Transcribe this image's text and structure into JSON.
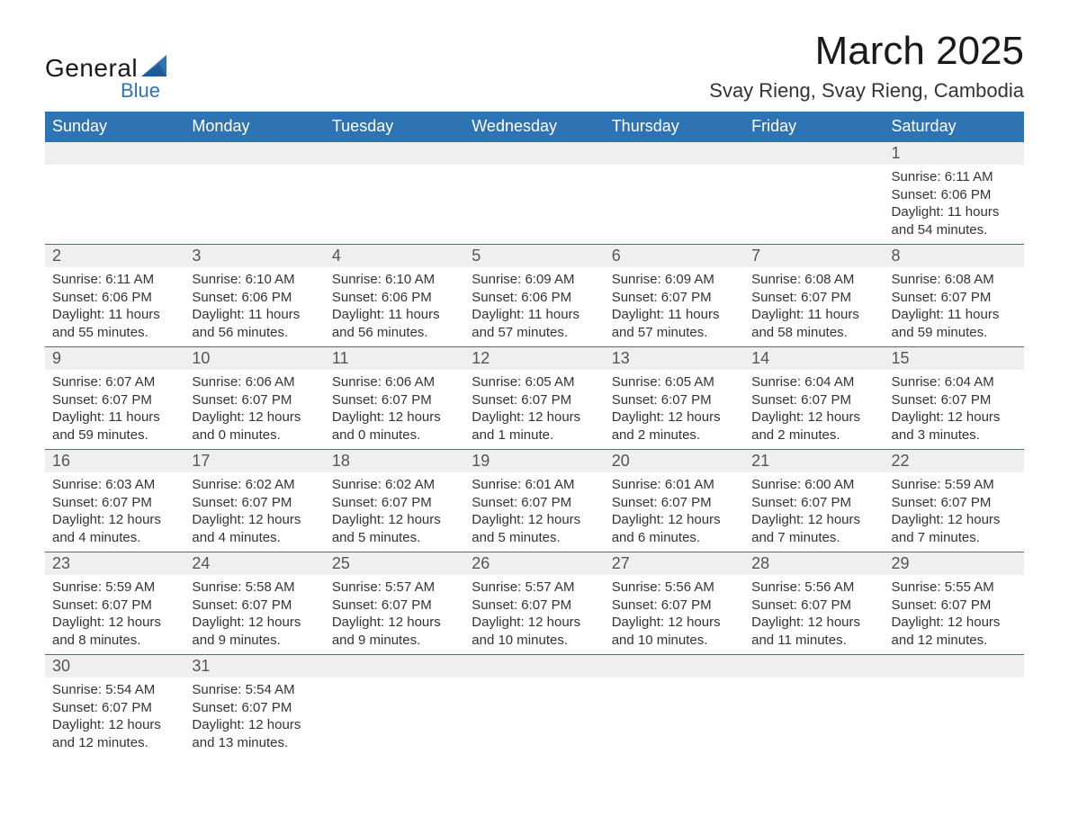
{
  "brand": {
    "general": "General",
    "blue": "Blue"
  },
  "title": "March 2025",
  "location": "Svay Rieng, Svay Rieng, Cambodia",
  "colors": {
    "header_bg": "#2e74b5",
    "header_text": "#ffffff",
    "daynum_bg": "#efefef",
    "border": "#2e74b5",
    "text": "#333333",
    "page_bg": "#ffffff",
    "logo_blue": "#2e74b5"
  },
  "typography": {
    "title_fontsize": 44,
    "location_fontsize": 22,
    "header_fontsize": 18,
    "daynum_fontsize": 18,
    "body_fontsize": 15
  },
  "day_headers": [
    "Sunday",
    "Monday",
    "Tuesday",
    "Wednesday",
    "Thursday",
    "Friday",
    "Saturday"
  ],
  "weeks": [
    [
      null,
      null,
      null,
      null,
      null,
      null,
      {
        "n": "1",
        "sunrise": "Sunrise: 6:11 AM",
        "sunset": "Sunset: 6:06 PM",
        "daylight": "Daylight: 11 hours and 54 minutes."
      }
    ],
    [
      {
        "n": "2",
        "sunrise": "Sunrise: 6:11 AM",
        "sunset": "Sunset: 6:06 PM",
        "daylight": "Daylight: 11 hours and 55 minutes."
      },
      {
        "n": "3",
        "sunrise": "Sunrise: 6:10 AM",
        "sunset": "Sunset: 6:06 PM",
        "daylight": "Daylight: 11 hours and 56 minutes."
      },
      {
        "n": "4",
        "sunrise": "Sunrise: 6:10 AM",
        "sunset": "Sunset: 6:06 PM",
        "daylight": "Daylight: 11 hours and 56 minutes."
      },
      {
        "n": "5",
        "sunrise": "Sunrise: 6:09 AM",
        "sunset": "Sunset: 6:06 PM",
        "daylight": "Daylight: 11 hours and 57 minutes."
      },
      {
        "n": "6",
        "sunrise": "Sunrise: 6:09 AM",
        "sunset": "Sunset: 6:07 PM",
        "daylight": "Daylight: 11 hours and 57 minutes."
      },
      {
        "n": "7",
        "sunrise": "Sunrise: 6:08 AM",
        "sunset": "Sunset: 6:07 PM",
        "daylight": "Daylight: 11 hours and 58 minutes."
      },
      {
        "n": "8",
        "sunrise": "Sunrise: 6:08 AM",
        "sunset": "Sunset: 6:07 PM",
        "daylight": "Daylight: 11 hours and 59 minutes."
      }
    ],
    [
      {
        "n": "9",
        "sunrise": "Sunrise: 6:07 AM",
        "sunset": "Sunset: 6:07 PM",
        "daylight": "Daylight: 11 hours and 59 minutes."
      },
      {
        "n": "10",
        "sunrise": "Sunrise: 6:06 AM",
        "sunset": "Sunset: 6:07 PM",
        "daylight": "Daylight: 12 hours and 0 minutes."
      },
      {
        "n": "11",
        "sunrise": "Sunrise: 6:06 AM",
        "sunset": "Sunset: 6:07 PM",
        "daylight": "Daylight: 12 hours and 0 minutes."
      },
      {
        "n": "12",
        "sunrise": "Sunrise: 6:05 AM",
        "sunset": "Sunset: 6:07 PM",
        "daylight": "Daylight: 12 hours and 1 minute."
      },
      {
        "n": "13",
        "sunrise": "Sunrise: 6:05 AM",
        "sunset": "Sunset: 6:07 PM",
        "daylight": "Daylight: 12 hours and 2 minutes."
      },
      {
        "n": "14",
        "sunrise": "Sunrise: 6:04 AM",
        "sunset": "Sunset: 6:07 PM",
        "daylight": "Daylight: 12 hours and 2 minutes."
      },
      {
        "n": "15",
        "sunrise": "Sunrise: 6:04 AM",
        "sunset": "Sunset: 6:07 PM",
        "daylight": "Daylight: 12 hours and 3 minutes."
      }
    ],
    [
      {
        "n": "16",
        "sunrise": "Sunrise: 6:03 AM",
        "sunset": "Sunset: 6:07 PM",
        "daylight": "Daylight: 12 hours and 4 minutes."
      },
      {
        "n": "17",
        "sunrise": "Sunrise: 6:02 AM",
        "sunset": "Sunset: 6:07 PM",
        "daylight": "Daylight: 12 hours and 4 minutes."
      },
      {
        "n": "18",
        "sunrise": "Sunrise: 6:02 AM",
        "sunset": "Sunset: 6:07 PM",
        "daylight": "Daylight: 12 hours and 5 minutes."
      },
      {
        "n": "19",
        "sunrise": "Sunrise: 6:01 AM",
        "sunset": "Sunset: 6:07 PM",
        "daylight": "Daylight: 12 hours and 5 minutes."
      },
      {
        "n": "20",
        "sunrise": "Sunrise: 6:01 AM",
        "sunset": "Sunset: 6:07 PM",
        "daylight": "Daylight: 12 hours and 6 minutes."
      },
      {
        "n": "21",
        "sunrise": "Sunrise: 6:00 AM",
        "sunset": "Sunset: 6:07 PM",
        "daylight": "Daylight: 12 hours and 7 minutes."
      },
      {
        "n": "22",
        "sunrise": "Sunrise: 5:59 AM",
        "sunset": "Sunset: 6:07 PM",
        "daylight": "Daylight: 12 hours and 7 minutes."
      }
    ],
    [
      {
        "n": "23",
        "sunrise": "Sunrise: 5:59 AM",
        "sunset": "Sunset: 6:07 PM",
        "daylight": "Daylight: 12 hours and 8 minutes."
      },
      {
        "n": "24",
        "sunrise": "Sunrise: 5:58 AM",
        "sunset": "Sunset: 6:07 PM",
        "daylight": "Daylight: 12 hours and 9 minutes."
      },
      {
        "n": "25",
        "sunrise": "Sunrise: 5:57 AM",
        "sunset": "Sunset: 6:07 PM",
        "daylight": "Daylight: 12 hours and 9 minutes."
      },
      {
        "n": "26",
        "sunrise": "Sunrise: 5:57 AM",
        "sunset": "Sunset: 6:07 PM",
        "daylight": "Daylight: 12 hours and 10 minutes."
      },
      {
        "n": "27",
        "sunrise": "Sunrise: 5:56 AM",
        "sunset": "Sunset: 6:07 PM",
        "daylight": "Daylight: 12 hours and 10 minutes."
      },
      {
        "n": "28",
        "sunrise": "Sunrise: 5:56 AM",
        "sunset": "Sunset: 6:07 PM",
        "daylight": "Daylight: 12 hours and 11 minutes."
      },
      {
        "n": "29",
        "sunrise": "Sunrise: 5:55 AM",
        "sunset": "Sunset: 6:07 PM",
        "daylight": "Daylight: 12 hours and 12 minutes."
      }
    ],
    [
      {
        "n": "30",
        "sunrise": "Sunrise: 5:54 AM",
        "sunset": "Sunset: 6:07 PM",
        "daylight": "Daylight: 12 hours and 12 minutes."
      },
      {
        "n": "31",
        "sunrise": "Sunrise: 5:54 AM",
        "sunset": "Sunset: 6:07 PM",
        "daylight": "Daylight: 12 hours and 13 minutes."
      },
      null,
      null,
      null,
      null,
      null
    ]
  ]
}
